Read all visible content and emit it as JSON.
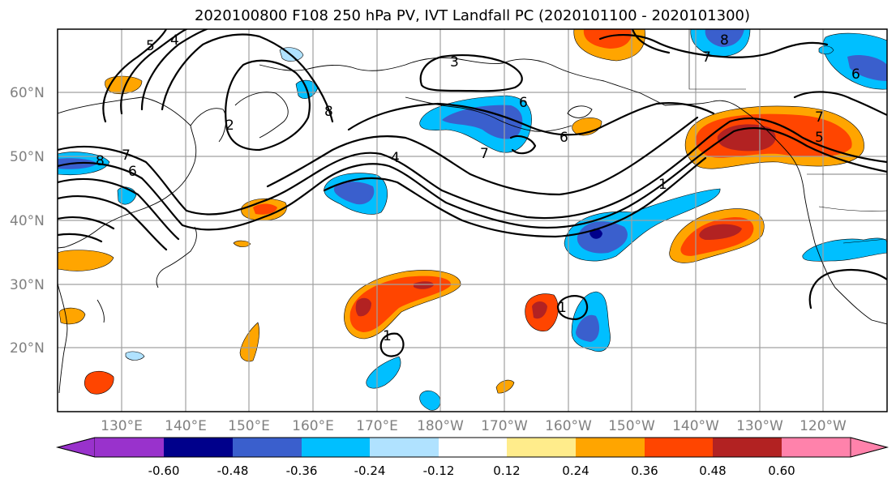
{
  "title": "2020100800 F108 250 hPa PV, IVT Landfall PC (2020101100 - 2020101300)",
  "lat_labels": [
    "60°N",
    "50°N",
    "40°N",
    "30°N",
    "20°N"
  ],
  "lon_labels": [
    "130°E",
    "140°E",
    "150°E",
    "160°E",
    "170°E",
    "180°W",
    "170°W",
    "160°W",
    "150°W",
    "140°W",
    "130°W",
    "120°W"
  ],
  "colorbar": {
    "ticks": [
      "-0.60",
      "-0.48",
      "-0.36",
      "-0.24",
      "-0.12",
      "0.12",
      "0.24",
      "0.36",
      "0.48",
      "0.60"
    ],
    "colors": [
      "#9932CC",
      "#00008B",
      "#3A5FCD",
      "#00BFFF",
      "#B0E2FF",
      "#FFFFFF",
      "#FFEC8B",
      "#FFA500",
      "#FF4500",
      "#B22222",
      "#FF82AB"
    ]
  },
  "contour_labels": [
    "5",
    "4",
    "2",
    "3",
    "6",
    "8",
    "7",
    "8",
    "6",
    "4",
    "7",
    "6",
    "1",
    "8",
    "7",
    "6",
    "7",
    "5",
    "1",
    "1"
  ]
}
